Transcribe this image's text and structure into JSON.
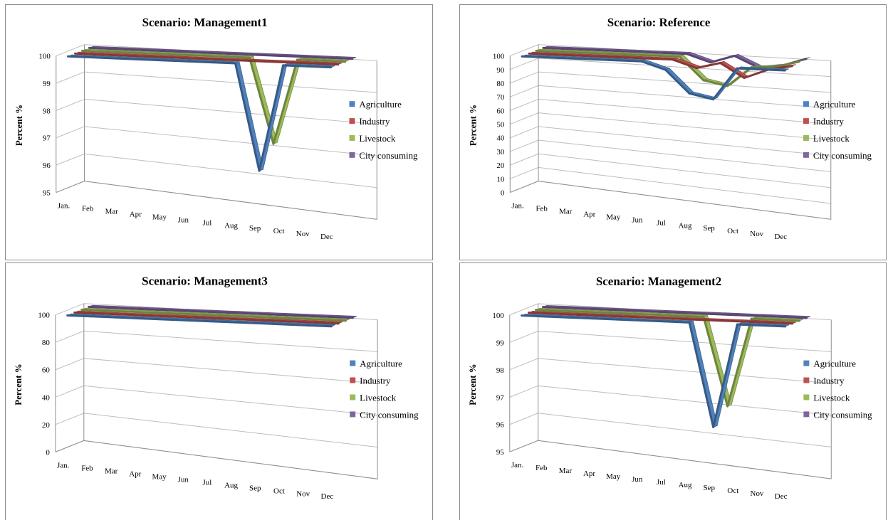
{
  "chart_data": [
    {
      "type": "line",
      "style": "3d-ribbon",
      "title": "Scenario: Management1",
      "ylabel": "Percent  %",
      "xlabel": "",
      "ylim": [
        95,
        100
      ],
      "yticks": [
        95,
        96,
        97,
        98,
        99,
        100
      ],
      "categories": [
        "Jan.",
        "Feb",
        "Mar",
        "Apr",
        "May",
        "Jun",
        "Jul",
        "Aug",
        "Sep",
        "Oct",
        "Nov",
        "Dec"
      ],
      "grid": true,
      "legend_position": "right",
      "series": [
        {
          "name": "Agriculture",
          "color": "#4f81bd",
          "values": [
            100,
            100,
            100,
            100,
            100,
            100,
            100,
            100,
            96.5,
            100,
            100,
            100
          ]
        },
        {
          "name": "Industry",
          "color": "#c0504d",
          "values": [
            100,
            100,
            100,
            100,
            100,
            100,
            100,
            100,
            100,
            100,
            100,
            100
          ]
        },
        {
          "name": "Livestock",
          "color": "#9bbb59",
          "values": [
            100,
            100,
            100,
            100,
            100,
            100,
            100,
            100,
            97.2,
            100,
            100,
            100
          ]
        },
        {
          "name": "City consuming",
          "color": "#8064a2",
          "values": [
            100,
            100,
            100,
            100,
            100,
            100,
            100,
            100,
            100,
            100,
            100,
            100
          ]
        }
      ]
    },
    {
      "type": "line",
      "style": "3d-ribbon",
      "title": "Scenario: Reference",
      "ylabel": "Percent  %",
      "xlabel": "",
      "ylim": [
        0,
        100
      ],
      "yticks": [
        0,
        10,
        20,
        30,
        40,
        50,
        60,
        70,
        80,
        90,
        100
      ],
      "categories": [
        "Jan.",
        "Feb",
        "Mar",
        "Apr",
        "May",
        "Jun",
        "Jul",
        "Aug",
        "Sep",
        "Oct",
        "Nov",
        "Dec"
      ],
      "grid": true,
      "legend_position": "right",
      "series": [
        {
          "name": "Agriculture",
          "color": "#4f81bd",
          "values": [
            100,
            100,
            100,
            100,
            100,
            100,
            95,
            80,
            77,
            98,
            98,
            98
          ]
        },
        {
          "name": "Industry",
          "color": "#c0504d",
          "values": [
            100,
            100,
            100,
            100,
            100,
            100,
            100,
            95,
            99,
            90,
            96,
            99
          ]
        },
        {
          "name": "Livestock",
          "color": "#9bbb59",
          "values": [
            100,
            100,
            100,
            100,
            100,
            100,
            100,
            85,
            82,
            95,
            96,
            100
          ]
        },
        {
          "name": "City consuming",
          "color": "#8064a2",
          "values": [
            100,
            100,
            100,
            100,
            100,
            100,
            100,
            95,
            100,
            93,
            95,
            100
          ]
        }
      ]
    },
    {
      "type": "line",
      "style": "3d-ribbon",
      "title": "Scenario: Management3",
      "ylabel": "Percent  %",
      "xlabel": "",
      "ylim": [
        0,
        100
      ],
      "yticks": [
        0,
        20,
        40,
        60,
        80,
        100
      ],
      "categories": [
        "Jan.",
        "Feb",
        "Mar",
        "Apr",
        "May",
        "Jun",
        "Jul",
        "Aug",
        "Sep",
        "Oct",
        "Nov",
        "Dec"
      ],
      "grid": true,
      "legend_position": "right",
      "series": [
        {
          "name": "Agriculture",
          "color": "#4f81bd",
          "values": [
            100,
            100,
            100,
            100,
            100,
            100,
            100,
            100,
            100,
            100,
            100,
            100
          ]
        },
        {
          "name": "Industry",
          "color": "#c0504d",
          "values": [
            100,
            100,
            100,
            100,
            100,
            100,
            100,
            100,
            100,
            100,
            100,
            100
          ]
        },
        {
          "name": "Livestock",
          "color": "#9bbb59",
          "values": [
            100,
            100,
            100,
            100,
            100,
            100,
            100,
            100,
            100,
            100,
            100,
            100
          ]
        },
        {
          "name": "City consuming",
          "color": "#8064a2",
          "values": [
            100,
            100,
            100,
            100,
            100,
            100,
            100,
            100,
            100,
            100,
            100,
            100
          ]
        }
      ]
    },
    {
      "type": "line",
      "style": "3d-ribbon",
      "title": "Scenario: Management2",
      "ylabel": "Percent  %",
      "xlabel": "",
      "ylim": [
        95,
        100
      ],
      "yticks": [
        95,
        96,
        97,
        98,
        99,
        100
      ],
      "categories": [
        "Jan.",
        "Feb",
        "Mar",
        "Apr",
        "May",
        "Jun",
        "Jul",
        "Aug",
        "Sep",
        "Oct",
        "Nov",
        "Dec"
      ],
      "grid": true,
      "legend_position": "right",
      "series": [
        {
          "name": "Agriculture",
          "color": "#4f81bd",
          "values": [
            100,
            100,
            100,
            100,
            100,
            100,
            100,
            100,
            96.6,
            100,
            100,
            100
          ]
        },
        {
          "name": "Industry",
          "color": "#c0504d",
          "values": [
            100,
            100,
            100,
            100,
            100,
            100,
            100,
            100,
            100,
            100,
            100,
            100
          ]
        },
        {
          "name": "Livestock",
          "color": "#9bbb59",
          "values": [
            100,
            100,
            100,
            100,
            100,
            100,
            100,
            100,
            97.1,
            100,
            100,
            100
          ]
        },
        {
          "name": "City consuming",
          "color": "#8064a2",
          "values": [
            100,
            100,
            100,
            100,
            100,
            100,
            100,
            100,
            100,
            100,
            100,
            100
          ]
        }
      ]
    }
  ]
}
